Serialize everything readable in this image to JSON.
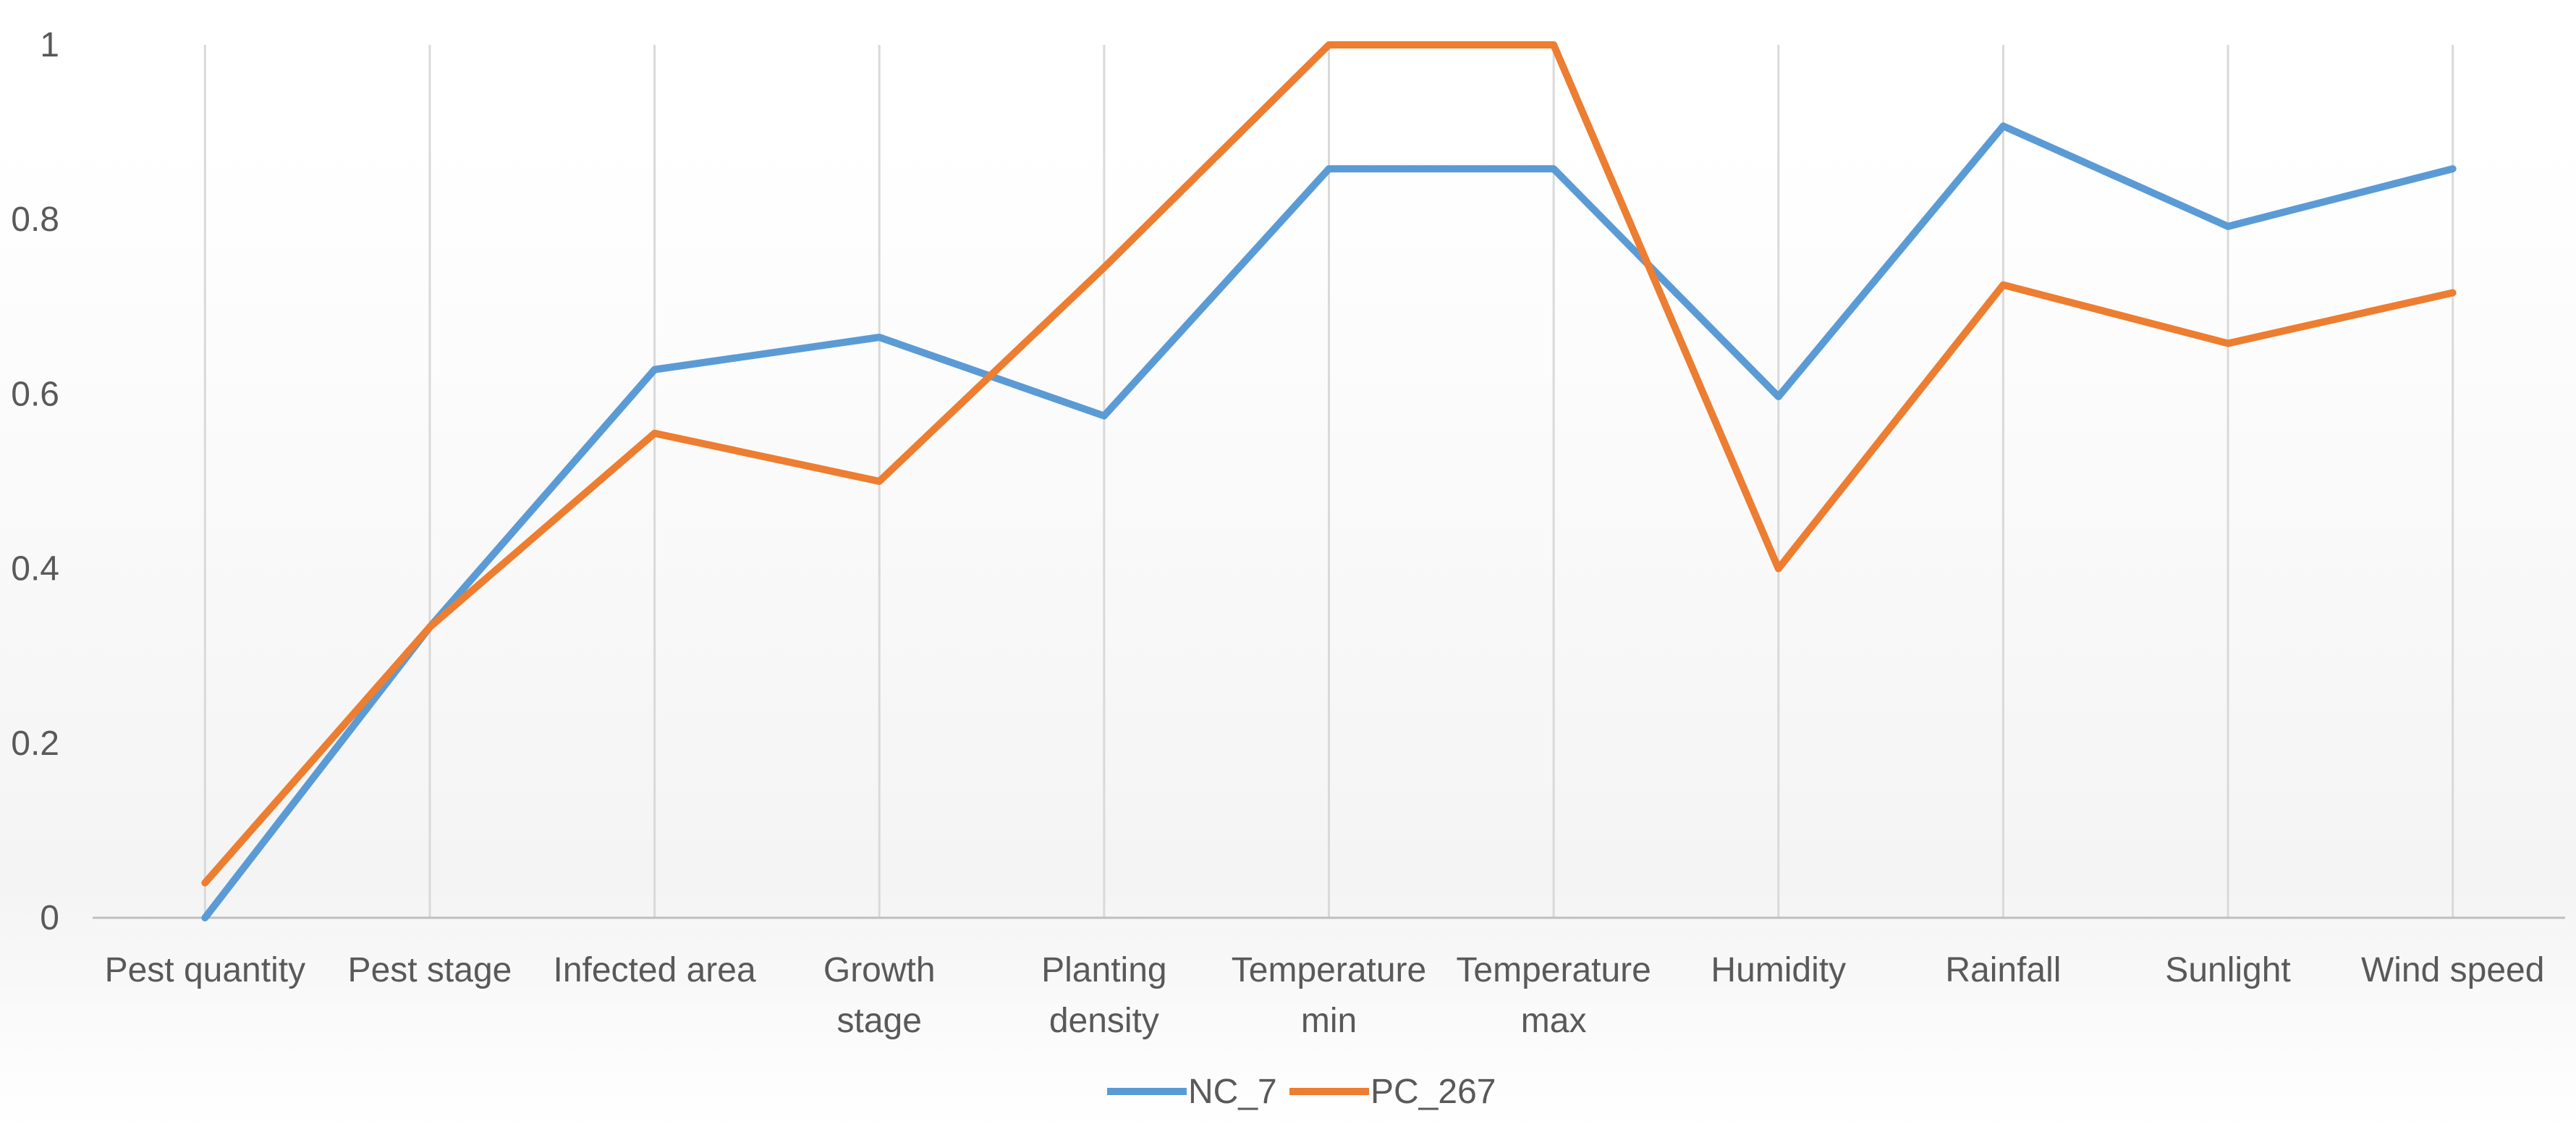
{
  "chart_data": {
    "type": "line",
    "title": "",
    "xlabel": "",
    "ylabel": "",
    "ylim": [
      0,
      1
    ],
    "yticks": [
      "0",
      "0.2",
      "0.4",
      "0.6",
      "0.8",
      "1"
    ],
    "ytick_values": [
      0,
      0.2,
      0.4,
      0.6,
      0.8,
      1
    ],
    "categories": [
      [
        "Pest quantity"
      ],
      [
        "Pest stage"
      ],
      [
        "Infected area"
      ],
      [
        "Growth",
        "stage"
      ],
      [
        "Planting",
        "density"
      ],
      [
        "Temperature",
        "min"
      ],
      [
        "Temperature",
        "max"
      ],
      [
        "Humidity"
      ],
      [
        "Rainfall"
      ],
      [
        "Sunlight"
      ],
      [
        "Wind speed"
      ]
    ],
    "series": [
      {
        "name": "NC_7",
        "color": "#5B9BD5",
        "values": [
          0.0,
          0.333,
          0.628,
          0.665,
          0.575,
          0.858,
          0.858,
          0.597,
          0.907,
          0.792,
          0.858
        ]
      },
      {
        "name": "PC_267",
        "color": "#ED7D31",
        "values": [
          0.04,
          0.333,
          0.555,
          0.5,
          0.745,
          1.0,
          1.0,
          0.4,
          0.725,
          0.658,
          0.716
        ]
      }
    ],
    "grid": "vertical",
    "legend": "bottom-center"
  }
}
